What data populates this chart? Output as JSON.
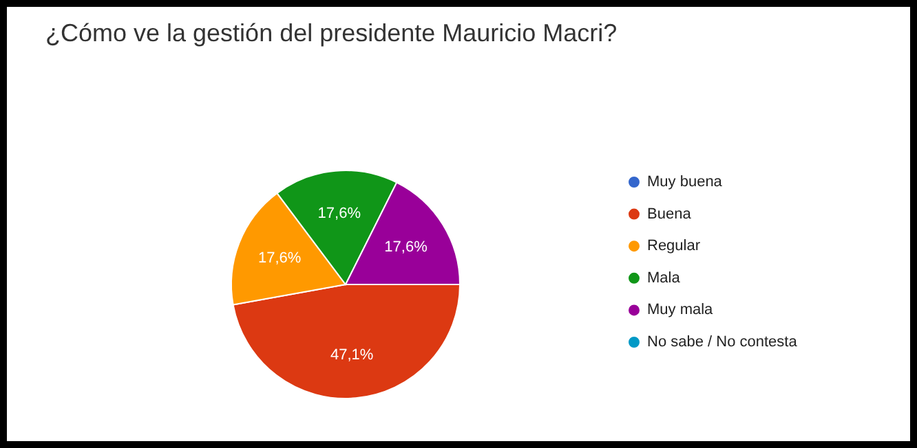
{
  "chart_data": {
    "type": "pie",
    "title": "¿Cómo ve la gestión del presidente Mauricio Macri?",
    "categories": [
      "Muy buena",
      "Buena",
      "Regular",
      "Mala",
      "Muy mala",
      "No sabe / No contesta"
    ],
    "values": [
      0,
      47.1,
      17.6,
      17.6,
      17.6,
      0
    ],
    "colors": [
      "#3366cc",
      "#dc3912",
      "#ff9900",
      "#109618",
      "#990099",
      "#0099c6"
    ],
    "value_labels": [
      null,
      "47,1%",
      "17,6%",
      "17,6%",
      "17,6%",
      null
    ],
    "legend": "right"
  }
}
